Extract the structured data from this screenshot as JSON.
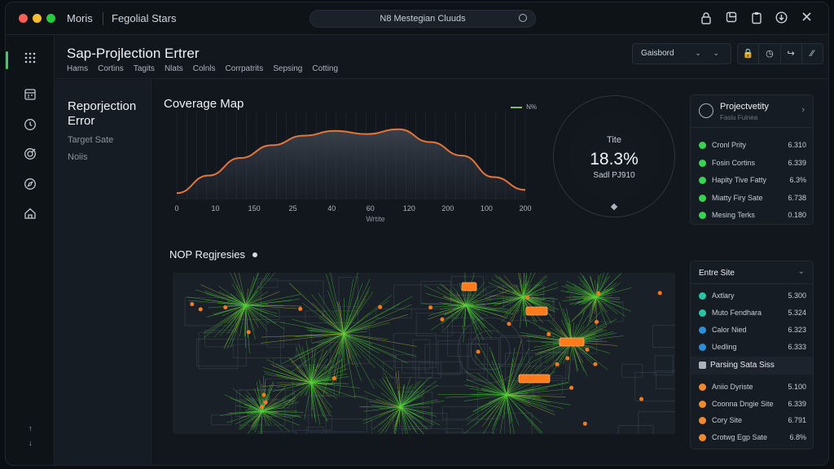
{
  "titlebar": {
    "app_name": "Moris",
    "document": "Fegolial Stars",
    "search": "N8 Mestegian Cluuds",
    "window_colors": [
      "#ff5f57",
      "#febc2e",
      "#28c840"
    ]
  },
  "header": {
    "title": "Sap-Projlection Ertrer",
    "nav": [
      "Hams",
      "Cortins",
      "Tagits",
      "Nlats",
      "Colnls",
      "Corrpatrits",
      "Sepsing",
      "Cotting"
    ],
    "dropdown": "Gaisbord",
    "dropdown_chevrons": "⌄ ⌄",
    "actions": [
      "🔒",
      "◷",
      "↪",
      "⁄⁄"
    ]
  },
  "subpanel": {
    "title": "Reporjection Error",
    "items": [
      "Target Sate",
      "Noiis"
    ]
  },
  "coverage": {
    "title": "Coverage Map",
    "legend": "N%",
    "x_title": "Wrtite"
  },
  "chart_data": {
    "type": "area",
    "title": "Coverage Map",
    "xlabel": "Wrtite",
    "tick_labels": [
      "0",
      "10",
      "150",
      "25",
      "40",
      "60",
      "120",
      "200",
      "100",
      "200"
    ],
    "values": [
      0.08,
      0.3,
      0.52,
      0.68,
      0.8,
      0.86,
      0.82,
      0.88,
      0.72,
      0.55,
      0.28,
      0.12
    ],
    "ylim": [
      0,
      1
    ],
    "legend": [
      "N%"
    ],
    "color": "#e8743a"
  },
  "gauge": {
    "label": "Tite",
    "value": "18.3%",
    "sub": "Sadl PJ910"
  },
  "panel_projectivity": {
    "title": "Projectvetity",
    "subtitle": "Fasiu Fuinea",
    "rows": [
      {
        "name": "Cronl Prity",
        "value": "6.310",
        "color": "#39d353"
      },
      {
        "name": "Fosin Cortins",
        "value": "6.339",
        "color": "#39d353"
      },
      {
        "name": "Hapity Tive Fatty",
        "value": "6.3%",
        "color": "#39d353"
      },
      {
        "name": "Miatty Firy Sate",
        "value": "6.738",
        "color": "#39d353"
      },
      {
        "name": "Mesing Terks",
        "value": "0.180",
        "color": "#39d353"
      }
    ]
  },
  "panel_entire": {
    "title": "Entre Site",
    "rows": [
      {
        "name": "Axtlary",
        "value": "5.300",
        "color": "#26c6a5"
      },
      {
        "name": "Muto Fendhara",
        "value": "5.324",
        "color": "#26c6a5"
      },
      {
        "name": "Calor Nied",
        "value": "6.323",
        "color": "#2e8fd8"
      },
      {
        "name": "Uedling",
        "value": "6.333",
        "color": "#2e8fd8"
      }
    ],
    "section": "Parsing Sata Siss",
    "section_rows": [
      {
        "name": "Aniio Dyriste",
        "value": "5.100",
        "color": "#f08a2c"
      },
      {
        "name": "Coonna Dngie Site",
        "value": "6.339",
        "color": "#f08a2c"
      },
      {
        "name": "Cory Site",
        "value": "6.791",
        "color": "#f08a2c"
      },
      {
        "name": "Crotwg Egp Sate",
        "value": "6.8%",
        "color": "#f08a2c"
      }
    ]
  },
  "nop": {
    "title": "NOP Regjresies"
  },
  "colors": {
    "accent": "#39d353",
    "bg": "#12171e",
    "map_green": "#4cd137",
    "map_orange": "#ff7a1a"
  }
}
